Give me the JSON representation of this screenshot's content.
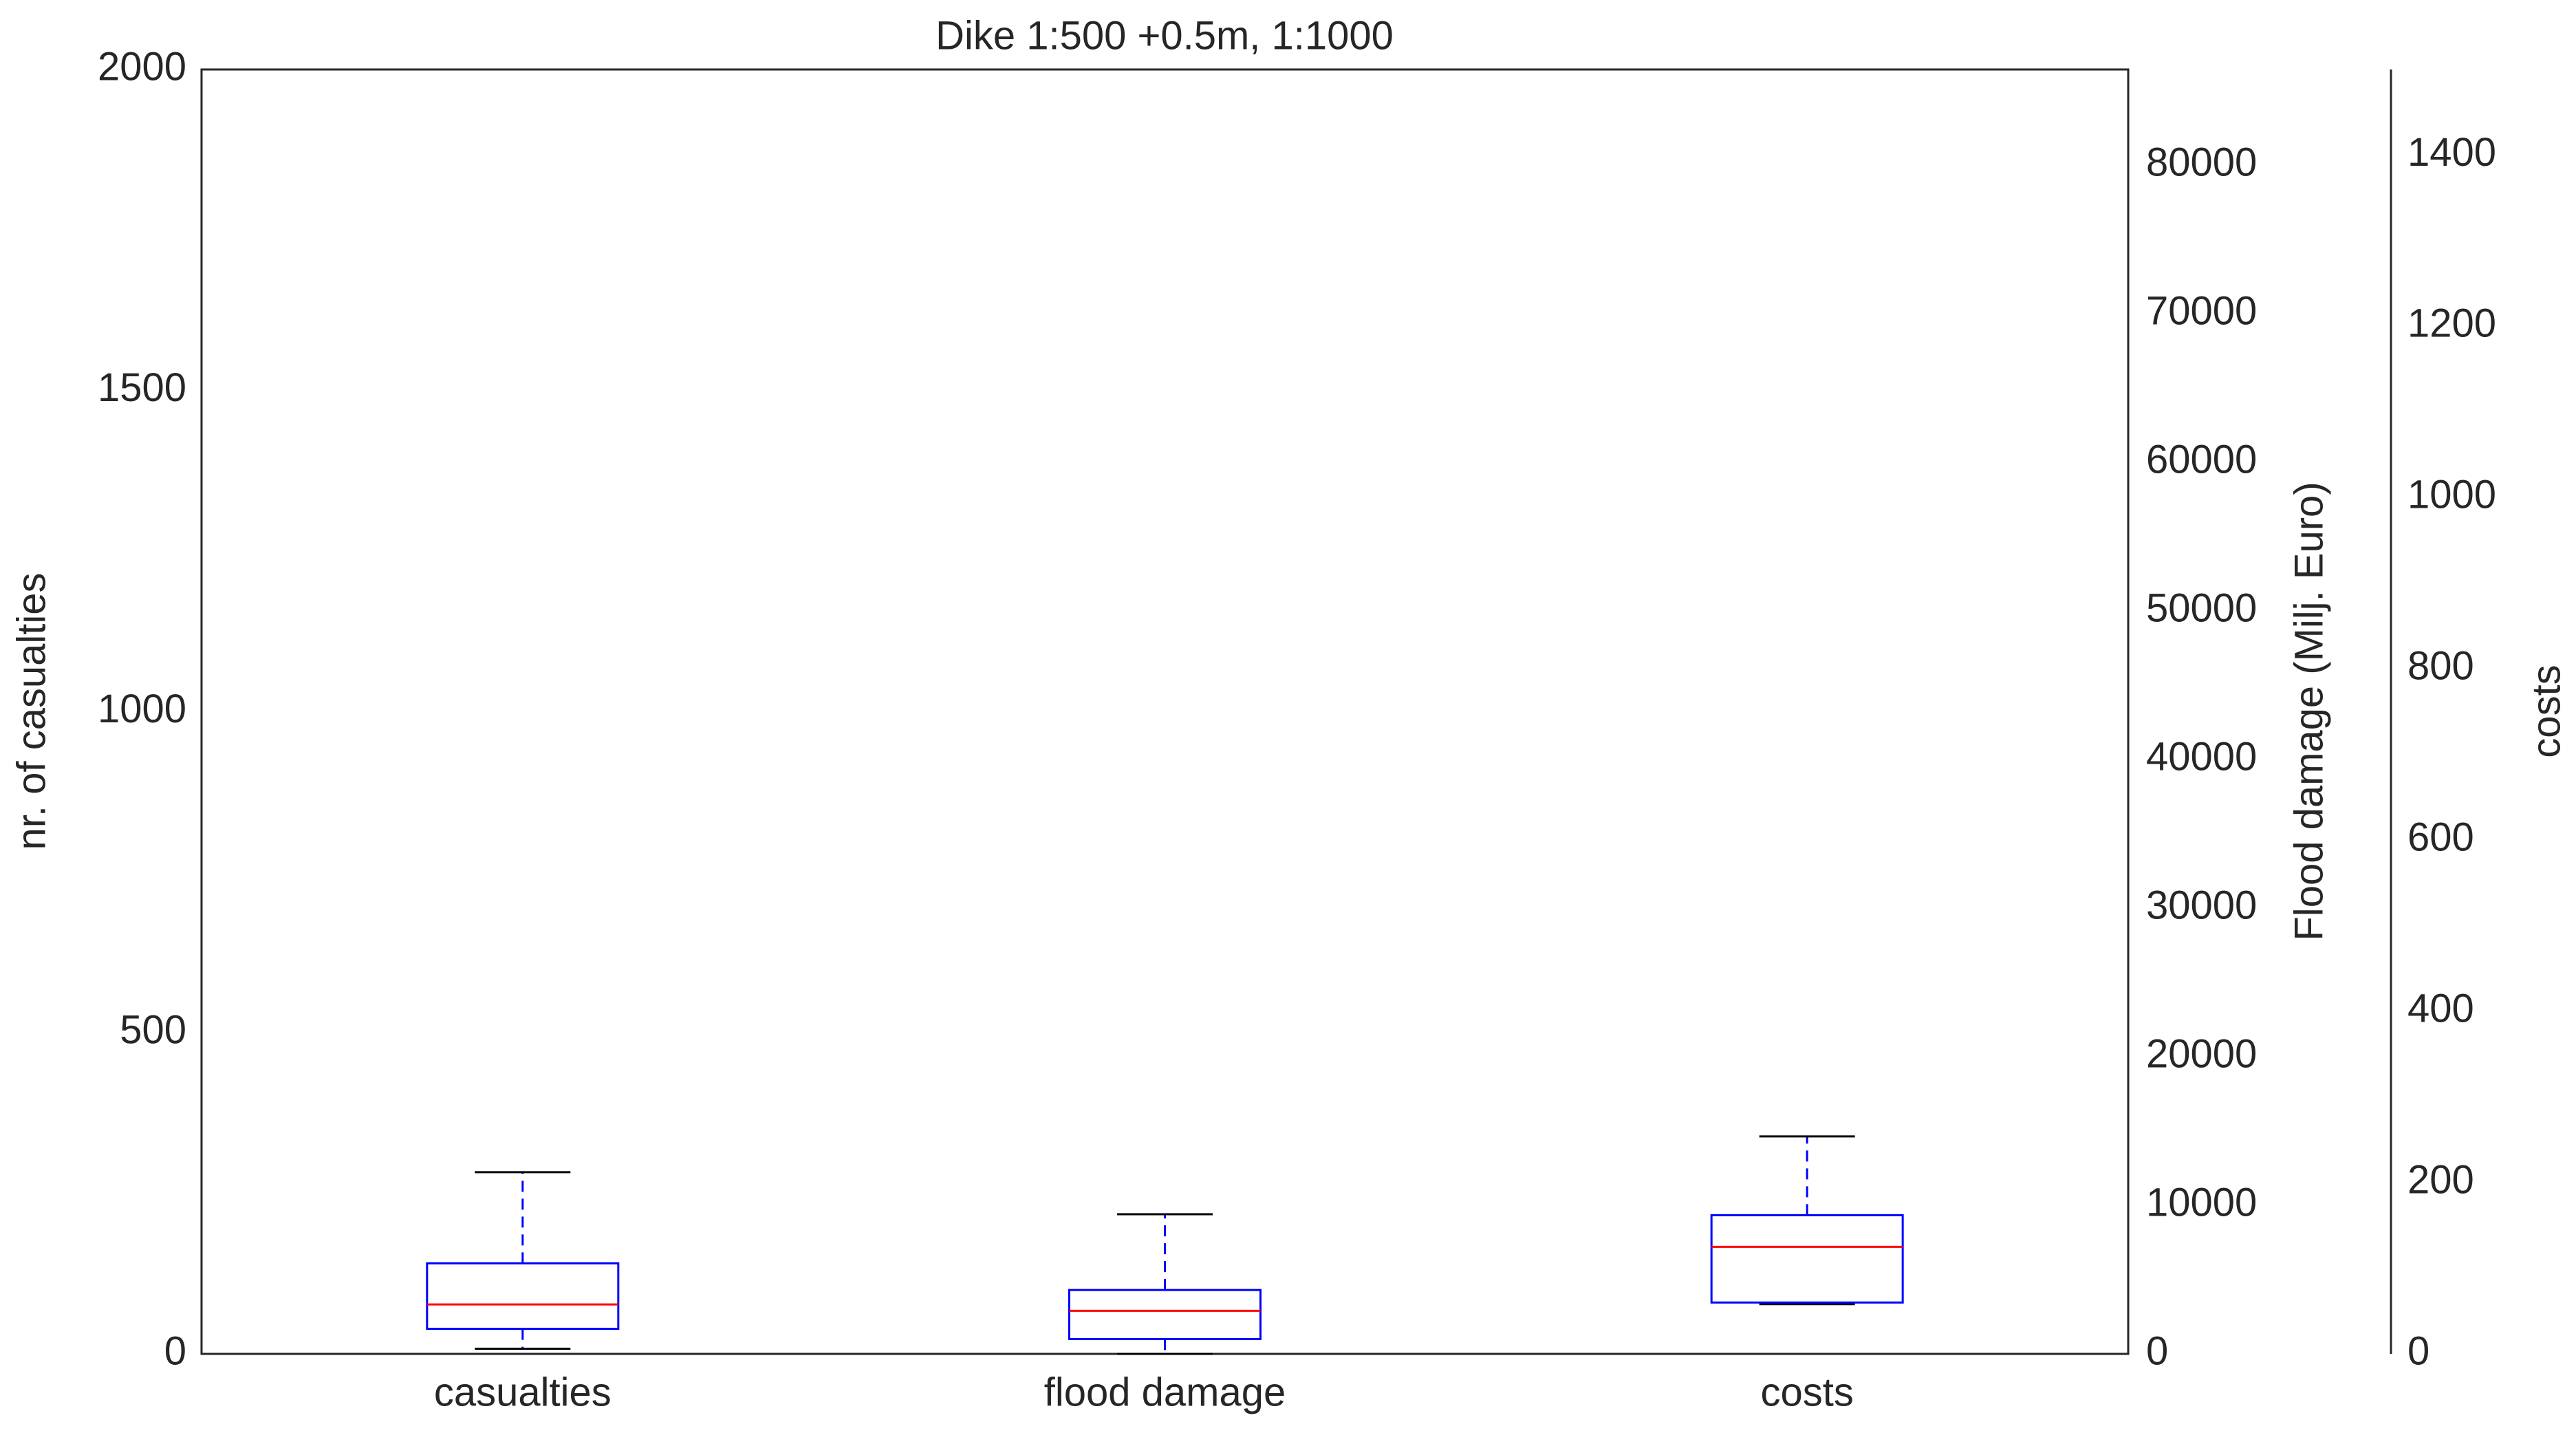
{
  "chart_data": {
    "type": "box",
    "title": "Dike 1:500 +0.5m, 1:1000",
    "y_label": "nr. of casualties",
    "y2_label": "Flood damage (Milj. Euro)",
    "y3_label": "costs",
    "categories": [
      "casualties",
      "flood damage",
      "costs"
    ],
    "box_color": "#0000ff",
    "median_color": "#ff0000",
    "cap_color": "#000000",
    "boxes": [
      {
        "axis": "y",
        "whislo": 8,
        "q1": 39,
        "med": 77,
        "q3": 141,
        "whishi": 283
      },
      {
        "axis": "y2",
        "whislo": 0,
        "q1": 1000,
        "med": 2900,
        "q3": 4300,
        "whishi": 9400
      },
      {
        "axis": "y3",
        "whislo": 58,
        "q1": 60,
        "med": 125,
        "q3": 162,
        "whishi": 254
      }
    ],
    "ylim": [
      0,
      2000
    ],
    "yticks": [
      0,
      500,
      1000,
      1500,
      2000
    ],
    "y2lim": [
      0,
      86444
    ],
    "y2ticks": [
      0,
      10000,
      20000,
      30000,
      40000,
      50000,
      60000,
      70000,
      80000
    ],
    "y3lim": [
      0,
      1500
    ],
    "y3ticks": [
      0,
      200,
      400,
      600,
      800,
      1000,
      1200,
      1400
    ]
  }
}
